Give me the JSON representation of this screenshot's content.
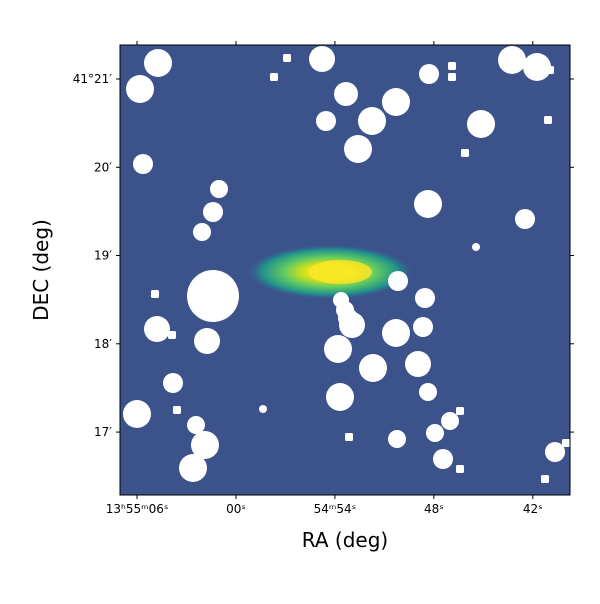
{
  "chart_data": {
    "type": "image",
    "x_label": "RA (deg)",
    "y_label": "DEC (deg)",
    "xlim": [
      208.7793,
      208.6656
    ],
    "xticks": [
      {
        "value": 208.775,
        "label": "13ʰ55ᵐ06ˢ"
      },
      {
        "value": 208.75,
        "label": "00ˢ"
      },
      {
        "value": 208.725,
        "label": "54ᵐ54ˢ"
      },
      {
        "value": 208.7,
        "label": "48ˢ"
      },
      {
        "value": 208.675,
        "label": "42ˢ"
      }
    ],
    "ylim": [
      41.27145,
      41.35642
    ],
    "yticks": [
      {
        "value": 41.28333,
        "label": "17′"
      },
      {
        "value": 41.3,
        "label": "18′"
      },
      {
        "value": 41.31667,
        "label": "19′"
      },
      {
        "value": 41.33333,
        "label": "20′"
      },
      {
        "value": 41.35,
        "label": "41°21′"
      }
    ]
  }
}
